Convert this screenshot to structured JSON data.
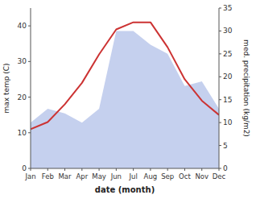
{
  "chart_data": {
    "type": "line",
    "categories": [
      "Jan",
      "Feb",
      "Mar",
      "Apr",
      "May",
      "Jun",
      "Jul",
      "Aug",
      "Sep",
      "Oct",
      "Nov",
      "Dec"
    ],
    "series": [
      {
        "type": "area",
        "color": "#c5d0ee",
        "axis": "y2",
        "values": [
          10,
          13,
          12,
          10,
          13,
          30,
          30,
          27,
          25,
          18,
          19,
          13
        ]
      },
      {
        "type": "line",
        "color": "#cc3333",
        "values": [
          11,
          13,
          18,
          24,
          32,
          39,
          41,
          41,
          34,
          25,
          19,
          15
        ]
      }
    ],
    "xlabel": "date (month)",
    "ylabel": "max temp (C)",
    "y2label": "med. precipitation (kg/m2)",
    "ylim": [
      0,
      45
    ],
    "yticks": [
      0,
      10,
      20,
      30,
      40
    ],
    "y2lim": [
      0,
      35
    ],
    "y2ticks": [
      0,
      5,
      10,
      15,
      20,
      25,
      30,
      35
    ],
    "grid": false
  }
}
